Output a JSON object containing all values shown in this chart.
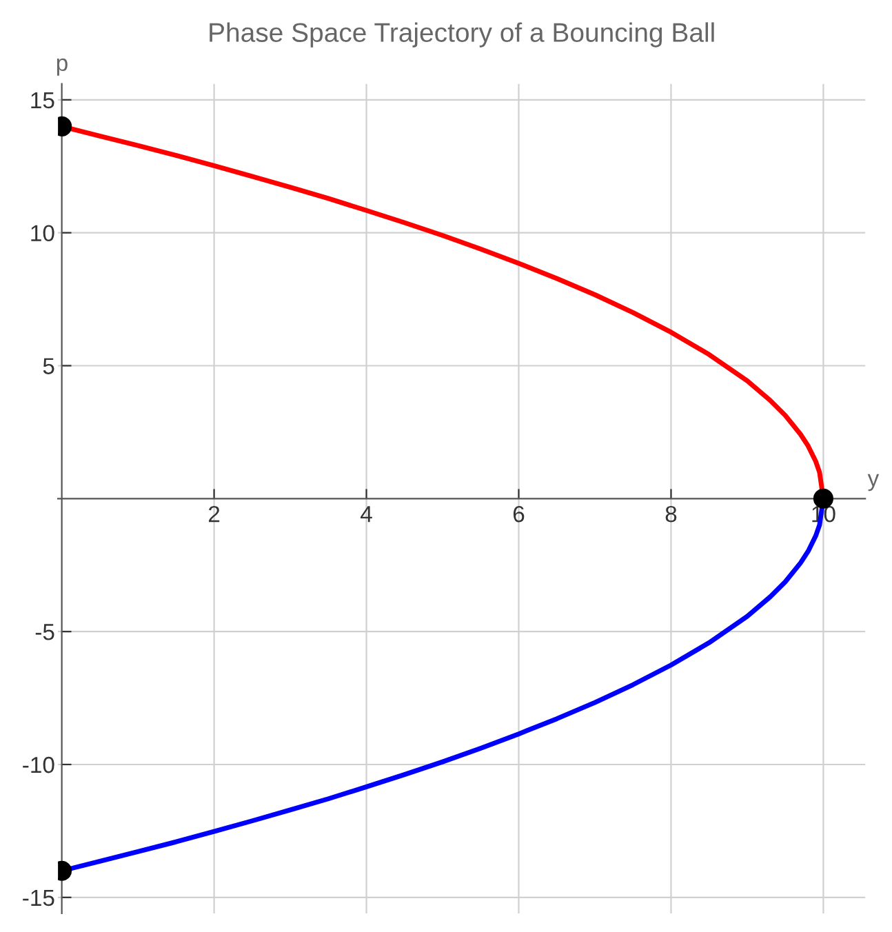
{
  "chart_data": {
    "type": "line",
    "title": "Phase Space Trajectory of a Bouncing Ball",
    "xlabel": "y",
    "ylabel": "p",
    "series": [
      {
        "color": "#ff0000",
        "x": [
          0,
          0.5,
          1,
          1.5,
          2,
          2.5,
          3,
          3.5,
          4,
          4.5,
          5,
          5.5,
          6,
          6.5,
          7,
          7.5,
          8,
          8.5,
          9,
          9.3,
          9.5,
          9.7,
          9.8,
          9.9,
          9.95,
          10
        ],
        "values": [
          14,
          13.64,
          13.28,
          12.91,
          12.52,
          12.12,
          11.71,
          11.29,
          10.84,
          10.38,
          9.9,
          9.39,
          8.85,
          8.28,
          7.67,
          7,
          6.26,
          5.42,
          4.43,
          3.7,
          3.13,
          2.42,
          1.98,
          1.4,
          0.99,
          0
        ]
      },
      {
        "color": "#0000ff",
        "x": [
          0,
          0.5,
          1,
          1.5,
          2,
          2.5,
          3,
          3.5,
          4,
          4.5,
          5,
          5.5,
          6,
          6.5,
          7,
          7.5,
          8,
          8.5,
          9,
          9.3,
          9.5,
          9.7,
          9.8,
          9.9,
          9.95,
          10
        ],
        "values": [
          -14,
          -13.64,
          -13.28,
          -12.91,
          -12.52,
          -12.12,
          -11.71,
          -11.29,
          -10.84,
          -10.38,
          -9.9,
          -9.39,
          -8.85,
          -8.28,
          -7.67,
          -7,
          -6.26,
          -5.42,
          -4.43,
          -3.7,
          -3.13,
          -2.42,
          -1.98,
          -1.4,
          -0.99,
          0
        ]
      },
      {
        "type": "scatter",
        "color": "#000000",
        "x": [
          0,
          10,
          0
        ],
        "values": [
          14,
          0,
          -14
        ]
      }
    ],
    "xlim": [
      -0.05,
      10.55
    ],
    "ylim": [
      -15.6,
      15.6
    ],
    "xticks": [
      2,
      4,
      6,
      8,
      10
    ],
    "yticks": [
      -15,
      -10,
      -5,
      5,
      10,
      15
    ],
    "grid": true,
    "legend": false
  }
}
